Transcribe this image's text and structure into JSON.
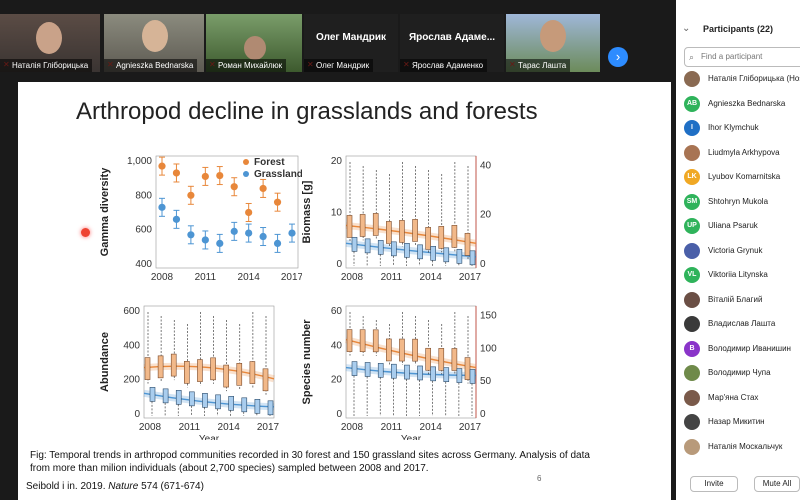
{
  "participants_panel": {
    "title": "Participants (22)",
    "search_placeholder": "Find a participant",
    "invite_label": "Invite",
    "mute_all_label": "Mute All",
    "list": [
      {
        "name": "Наталія Гліборицька (Host)",
        "initials": "",
        "color": "#8a6a52"
      },
      {
        "name": "Agnieszka Bednarska",
        "initials": "AB",
        "color": "#2fb35b"
      },
      {
        "name": "Ihor Klymchuk",
        "initials": "I",
        "color": "#1f6fc5"
      },
      {
        "name": "Liudmyla Arkhypova",
        "initials": "",
        "color": "#a87453"
      },
      {
        "name": "Lyubov Komarnitska",
        "initials": "LK",
        "color": "#f0a824"
      },
      {
        "name": "Shtohryn Mukola",
        "initials": "SM",
        "color": "#2fb35b"
      },
      {
        "name": "Uliana Psaruk",
        "initials": "UP",
        "color": "#2fb35b"
      },
      {
        "name": "Victoria Grynuk",
        "initials": "",
        "color": "#4a5fa8"
      },
      {
        "name": "Viktoriia Litynska",
        "initials": "VL",
        "color": "#2fb35b"
      },
      {
        "name": "Віталій Благий",
        "initials": "",
        "color": "#6b4f45"
      },
      {
        "name": "Владислав Лашта",
        "initials": "",
        "color": "#3a3a3a"
      },
      {
        "name": "Володимир Иванишин",
        "initials": "B",
        "color": "#8a34c9"
      },
      {
        "name": "Володимир Чупа",
        "initials": "",
        "color": "#6f8a4a"
      },
      {
        "name": "Мар'яна Стах",
        "initials": "",
        "color": "#7a5a4a"
      },
      {
        "name": "Назар Микитин",
        "initials": "",
        "color": "#444"
      },
      {
        "name": "Наталія Москальчук",
        "initials": "",
        "color": "#b89a7a"
      }
    ]
  },
  "video_strip": [
    {
      "name": "Наталія Гліборицька",
      "muted": true,
      "video": true
    },
    {
      "name": "Agnieszka Bednarska",
      "muted": true,
      "video": true
    },
    {
      "name": "Роман Михайлюк",
      "muted": true,
      "video": true
    },
    {
      "name": "Олег Мандрик",
      "muted": true,
      "video": false
    },
    {
      "name": "Ярослав Адаменко",
      "muted": true,
      "video": false
    },
    {
      "name": "Тарас Лашта",
      "muted": true,
      "video": true
    }
  ],
  "video_big_names": [
    "Олег Мандрик",
    "Ярослав Адаме..."
  ],
  "slide": {
    "title": "Arthropod decline in grasslands and forests",
    "caption": "Fig: Temporal trends in arthropod communities recorded in 30 forest and 150 grassland sites across Germany. Analysis of data from more than milion individuals (about 2,700 species) sampled between 2008 and 2017.",
    "citation_pre": "Seibold i in. 2019. ",
    "citation_journal": "Nature",
    "citation_post": " 574 (671-674)",
    "page_number": "6",
    "legend": {
      "forest": "Forest",
      "grassland": "Grassland"
    },
    "x_label": "Year",
    "x_ticks": [
      "2008",
      "2011",
      "2014",
      "2017"
    ],
    "colors": {
      "forest": "#e8873a",
      "grassland": "#4d95d3"
    }
  },
  "chart_data": [
    {
      "type": "scatter",
      "ylabel": "Gamma diversity",
      "ylim": [
        400,
        1000
      ],
      "y_ticks": [
        "400",
        "600",
        "800",
        "1,000"
      ],
      "x": [
        2008,
        2009,
        2010,
        2011,
        2012,
        2013,
        2014,
        2015,
        2016,
        2017
      ],
      "series": [
        {
          "name": "Forest",
          "values": [
            970,
            930,
            800,
            910,
            915,
            850,
            700,
            840,
            760,
            null
          ]
        },
        {
          "name": "Grassland",
          "values": [
            730,
            660,
            570,
            540,
            520,
            590,
            580,
            560,
            520,
            580
          ]
        }
      ]
    },
    {
      "type": "box",
      "ylabel": "Biomass [g]",
      "ylim": [
        0,
        25
      ],
      "y_ticks": [
        "0",
        "10",
        "20"
      ],
      "y2_ticks": [
        "0",
        "20",
        "40"
      ],
      "x": [
        2008,
        2009,
        2010,
        2011,
        2012,
        2013,
        2014,
        2015,
        2016,
        2017
      ]
    },
    {
      "type": "box",
      "ylabel": "Abundance",
      "ylim": [
        0,
        700
      ],
      "y_ticks": [
        "0",
        "200",
        "400",
        "600"
      ],
      "x": [
        2008,
        2009,
        2010,
        2011,
        2012,
        2013,
        2014,
        2015,
        2016,
        2017
      ]
    },
    {
      "type": "box",
      "ylabel": "Species number",
      "ylim": [
        0,
        80
      ],
      "y_ticks": [
        "0",
        "20",
        "40",
        "60"
      ],
      "y2_ticks": [
        "0",
        "50",
        "100",
        "150"
      ],
      "x": [
        2008,
        2009,
        2010,
        2011,
        2012,
        2013,
        2014,
        2015,
        2016,
        2017
      ]
    }
  ]
}
